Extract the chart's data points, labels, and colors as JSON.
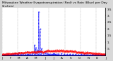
{
  "title": "Milwaukee Weather Evapotranspiration (Red) vs Rain (Blue) per Day (Inches)",
  "title_fontsize": 3.2,
  "background_color": "#d8d8d8",
  "plot_bg_color": "#ffffff",
  "ylim": [
    0,
    3.6
  ],
  "ytick_vals": [
    0.5,
    1.0,
    1.5,
    2.0,
    2.5,
    3.0,
    3.5
  ],
  "ytick_labels": [
    ".5",
    "1.",
    "1.5",
    "2.",
    "2.5",
    "3.",
    "3.5"
  ],
  "ylabel_fontsize": 3.0,
  "xlabel_fontsize": 3.0,
  "rain_color": "#0000ff",
  "et_color": "#ff0000",
  "grid_color": "#888888",
  "n_points": 365,
  "rain_indices": [
    10,
    14,
    18,
    22,
    30,
    35,
    42,
    48,
    55,
    60,
    68,
    75,
    82,
    90,
    95,
    100,
    108,
    115,
    120,
    125,
    130,
    135,
    140,
    148,
    155,
    160,
    165,
    170,
    175,
    180,
    183,
    184,
    185,
    186,
    190,
    195,
    200,
    210,
    220,
    230,
    240,
    250,
    260,
    270,
    280,
    290,
    300,
    310,
    320,
    330,
    340,
    350,
    360
  ],
  "rain_values": [
    0.05,
    0.08,
    0.06,
    0.1,
    0.05,
    0.12,
    0.1,
    0.15,
    0.08,
    0.2,
    0.1,
    0.15,
    0.1,
    0.12,
    0.08,
    0.1,
    0.15,
    0.8,
    0.6,
    0.4,
    3.3,
    2.0,
    0.5,
    0.2,
    0.3,
    0.15,
    0.12,
    0.1,
    0.08,
    0.12,
    0.15,
    0.1,
    0.08,
    0.06,
    0.1,
    0.08,
    0.12,
    0.15,
    0.1,
    0.08,
    0.12,
    0.1,
    0.08,
    0.06,
    0.1,
    0.08,
    0.06,
    0.05,
    0.08,
    0.06,
    0.05,
    0.04,
    0.06
  ],
  "et_base": 0.1,
  "et_amplitude": 0.18,
  "grid_x_positions": [
    0,
    55,
    111,
    166,
    222,
    277,
    332,
    365
  ],
  "xtick_labels": [
    "J",
    "F",
    "M",
    "A",
    "M",
    "J",
    "J",
    "A",
    "S",
    "O",
    "N",
    "D",
    "J"
  ]
}
